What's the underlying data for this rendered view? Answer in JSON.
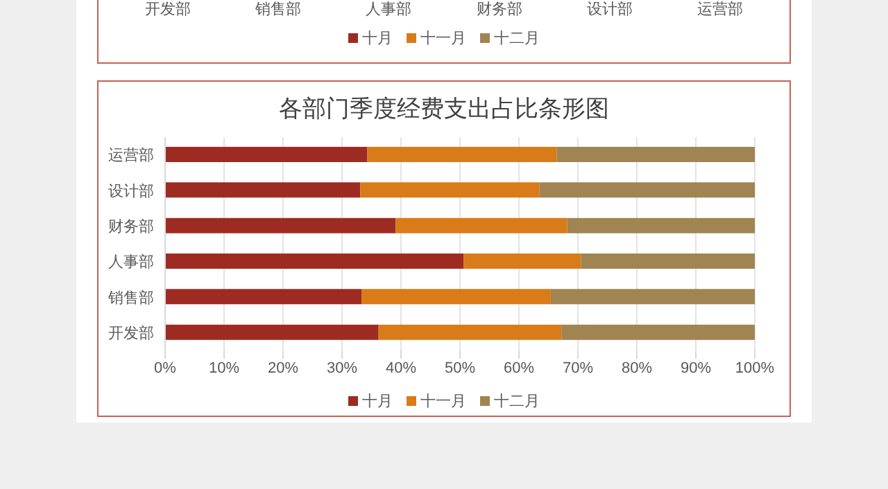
{
  "chart_data": [
    {
      "type": "other",
      "categories": [
        "开发部",
        "销售部",
        "人事部",
        "财务部",
        "设计部",
        "运营部"
      ],
      "series": [
        {
          "name": "十月",
          "color": "#9e2b22",
          "values": [
            null,
            null,
            null,
            null,
            null,
            null
          ]
        },
        {
          "name": "十一月",
          "color": "#d97b18",
          "values": [
            null,
            null,
            null,
            null,
            null,
            null
          ]
        },
        {
          "name": "十二月",
          "color": "#a08452",
          "values": [
            null,
            null,
            null,
            null,
            null,
            null
          ]
        }
      ],
      "legend": "bottom"
    },
    {
      "type": "bar",
      "title": "各部门季度经费支出占比条形图",
      "orientation": "horizontal",
      "stacked": true,
      "categories": [
        "运营部",
        "设计部",
        "财务部",
        "人事部",
        "销售部",
        "开发部"
      ],
      "series": [
        {
          "name": "十月",
          "color": "#9e2b22",
          "values": [
            34.3,
            33.1,
            39.1,
            50.6,
            33.3,
            36.2
          ]
        },
        {
          "name": "十一月",
          "color": "#d97b18",
          "values": [
            32.1,
            30.4,
            29.1,
            19.9,
            32.1,
            31.0
          ]
        },
        {
          "name": "十二月",
          "color": "#a08452",
          "values": [
            33.6,
            36.5,
            31.8,
            29.5,
            34.6,
            32.8
          ]
        }
      ],
      "xlim": [
        0,
        100
      ],
      "xticks": [
        {
          "value": 0,
          "label": "0%"
        },
        {
          "value": 10,
          "label": "10%"
        },
        {
          "value": 20,
          "label": "20%"
        },
        {
          "value": 30,
          "label": "30%"
        },
        {
          "value": 40,
          "label": "40%"
        },
        {
          "value": 50,
          "label": "50%"
        },
        {
          "value": 60,
          "label": "60%"
        },
        {
          "value": 70,
          "label": "70%"
        },
        {
          "value": 80,
          "label": "80%"
        },
        {
          "value": 90,
          "label": "90%"
        },
        {
          "value": 100,
          "label": "100%"
        }
      ],
      "grid": "x",
      "legend": "bottom"
    }
  ]
}
